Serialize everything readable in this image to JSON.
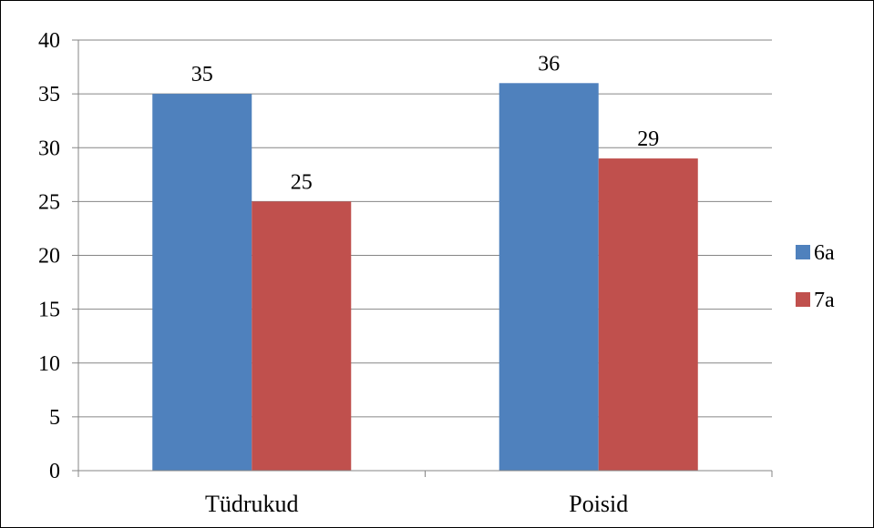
{
  "chart_data": {
    "type": "bar",
    "categories": [
      "Tüdrukud",
      "Poisid"
    ],
    "series": [
      {
        "name": "6a",
        "color": "#4F81BD",
        "values": [
          35,
          36
        ]
      },
      {
        "name": "7a",
        "color": "#C0504D",
        "values": [
          25,
          29
        ]
      }
    ],
    "ylim": [
      0,
      40
    ],
    "yticks": [
      0,
      5,
      10,
      15,
      20,
      25,
      30,
      35,
      40
    ],
    "grid": true,
    "legend_position": "right",
    "data_labels": true,
    "title": "",
    "xlabel": "",
    "ylabel": ""
  }
}
